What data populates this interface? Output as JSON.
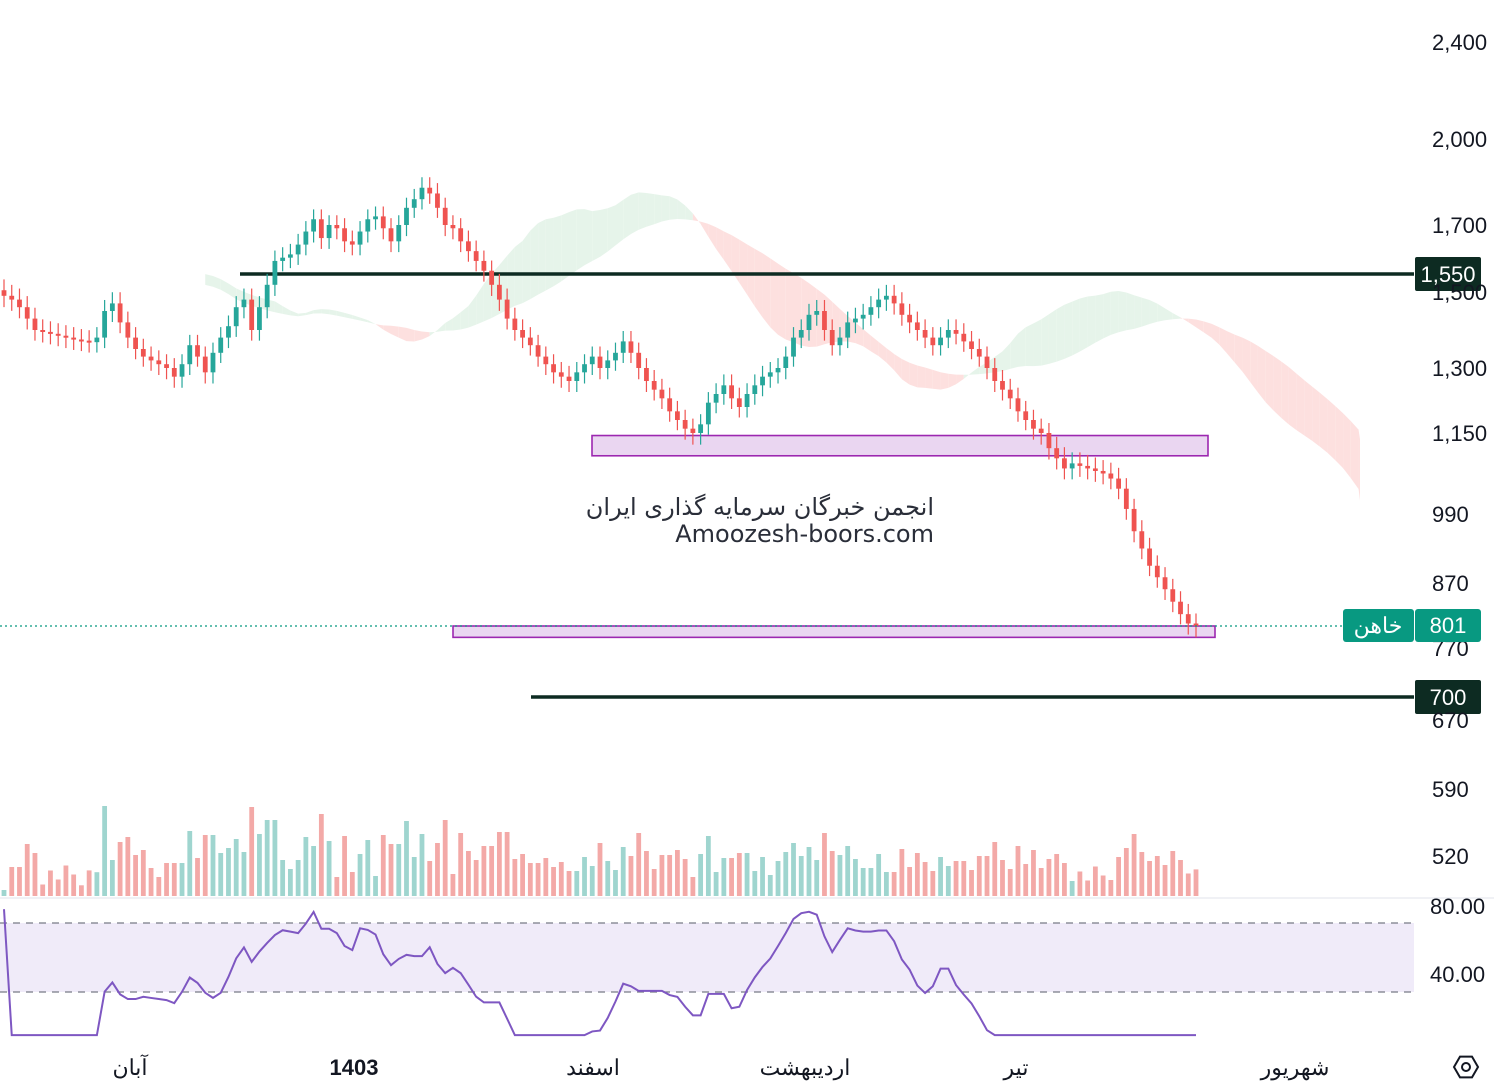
{
  "chart_data": {
    "type": "candlestick",
    "symbol": "خاهن",
    "last_price": 801,
    "y_ticks": [
      2400,
      2000,
      1700,
      1500,
      1300,
      1150,
      990,
      870,
      770,
      670,
      590,
      520
    ],
    "y_tick_labels": [
      "2,400",
      "2,000",
      "1,700",
      "1,500",
      "1,300",
      "1,150",
      "990",
      "870",
      "770",
      "670",
      "590",
      "520"
    ],
    "x_labels": [
      {
        "label": "آبان",
        "bold": false
      },
      {
        "label": "1403",
        "bold": true
      },
      {
        "label": "اسفند",
        "bold": false
      },
      {
        "label": "اردیبهشت",
        "bold": false
      },
      {
        "label": "تیر",
        "bold": false
      },
      {
        "label": "شهریور",
        "bold": false
      }
    ],
    "horizontal_lines": [
      {
        "price": 1550,
        "label": "1,550",
        "color": "#0d2b22"
      },
      {
        "price": 700,
        "label": "700",
        "color": "#0d2b22"
      }
    ],
    "zones": [
      {
        "name": "resistance-zone",
        "price_top": 1145,
        "price_bottom": 1105,
        "color": "#9c27b0"
      },
      {
        "name": "support-zone",
        "price_top": 801,
        "price_bottom": 785,
        "color": "#9c27b0"
      }
    ],
    "close_series": [
      1490,
      1480,
      1460,
      1430,
      1400,
      1395,
      1390,
      1385,
      1380,
      1375,
      1372,
      1368,
      1380,
      1450,
      1470,
      1420,
      1380,
      1350,
      1330,
      1320,
      1310,
      1300,
      1280,
      1310,
      1360,
      1330,
      1290,
      1340,
      1380,
      1410,
      1460,
      1480,
      1400,
      1460,
      1520,
      1590,
      1600,
      1610,
      1640,
      1680,
      1720,
      1660,
      1700,
      1690,
      1650,
      1640,
      1680,
      1720,
      1730,
      1690,
      1650,
      1700,
      1760,
      1790,
      1830,
      1810,
      1760,
      1700,
      1690,
      1650,
      1620,
      1590,
      1560,
      1520,
      1480,
      1430,
      1400,
      1380,
      1360,
      1330,
      1310,
      1290,
      1280,
      1270,
      1290,
      1310,
      1330,
      1300,
      1320,
      1340,
      1370,
      1340,
      1300,
      1270,
      1250,
      1230,
      1200,
      1180,
      1160,
      1150,
      1170,
      1220,
      1240,
      1260,
      1230,
      1210,
      1240,
      1260,
      1280,
      1290,
      1300,
      1330,
      1380,
      1400,
      1440,
      1450,
      1400,
      1360,
      1380,
      1420,
      1430,
      1440,
      1460,
      1480,
      1490,
      1470,
      1440,
      1420,
      1400,
      1380,
      1360,
      1380,
      1400,
      1390,
      1370,
      1350,
      1330,
      1300,
      1270,
      1250,
      1230,
      1200,
      1180,
      1160,
      1150,
      1120,
      1100,
      1080,
      1090,
      1085,
      1080,
      1075,
      1070,
      1060,
      1040,
      1000,
      960,
      930,
      900,
      880,
      860,
      840,
      820,
      805,
      801
    ],
    "volume_note": "relative",
    "rsi_levels": {
      "upper": 80.0,
      "lower": 40.0
    },
    "rsi_tick_labels": [
      "80.00",
      "40.00"
    ],
    "colors": {
      "up": "#26a69a",
      "down": "#ef5350",
      "rsi": "#7e57c2",
      "cloud_up": "#e6f4ea",
      "cloud_down": "#fde0df",
      "zone": "#ead6f1",
      "badge": "#089981"
    }
  },
  "watermark": {
    "line1": "انجمن خبرگان سرمایه گذاری ایران",
    "line2": "Amoozesh-boors.com"
  },
  "icons": {
    "settings": "hexagon-settings-icon"
  }
}
